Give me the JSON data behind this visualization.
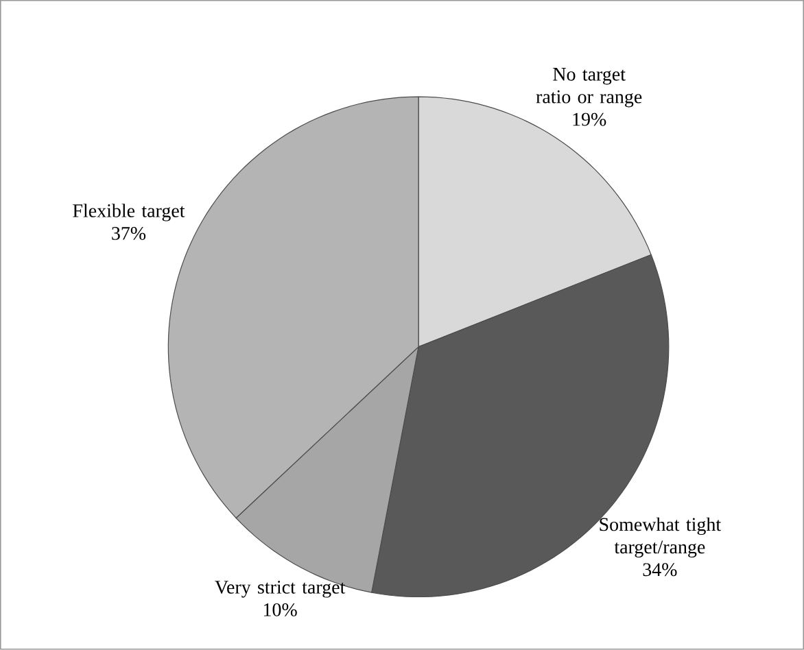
{
  "chart_data": {
    "type": "pie",
    "categories": [
      "No target ratio or range",
      "Somewhat tight target/range",
      "Very strict target",
      "Flexible target"
    ],
    "values": [
      19,
      34,
      10,
      37
    ],
    "value_labels": [
      "19%",
      "34%",
      "10%",
      "37%"
    ],
    "colors": [
      "#d9d9d9",
      "#595959",
      "#a6a6a6",
      "#b4b4b4"
    ]
  }
}
